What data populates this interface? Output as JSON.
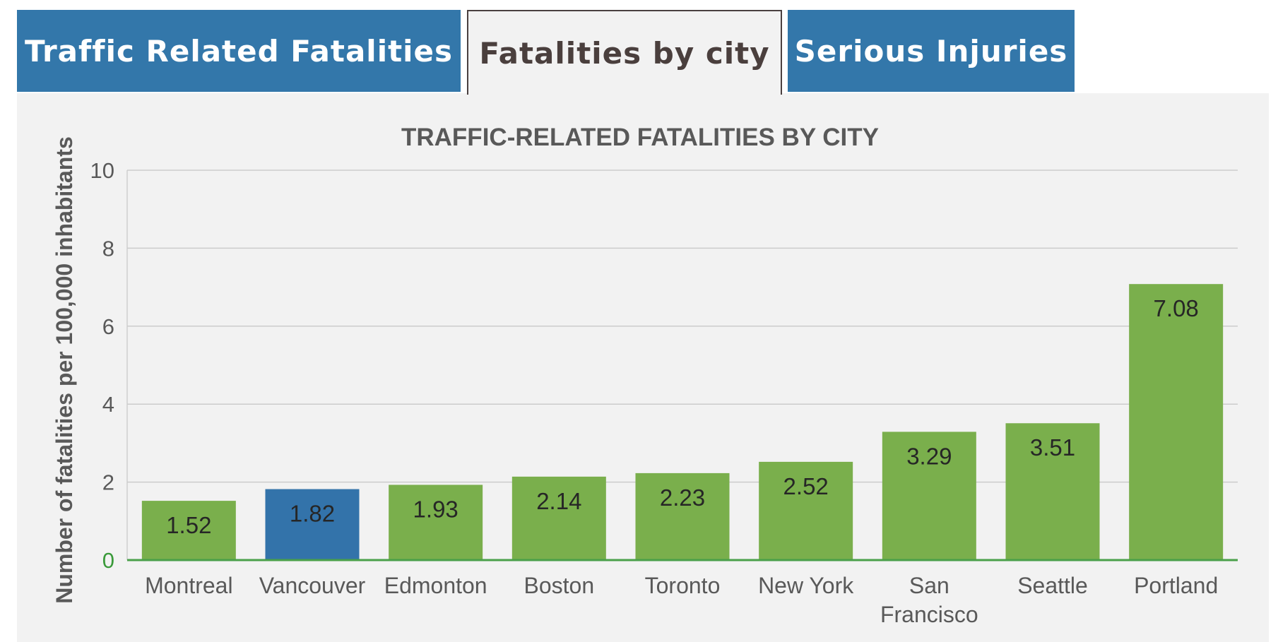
{
  "tabs": [
    {
      "label": "Traffic Related Fatalities",
      "active": false
    },
    {
      "label": "Fatalities by city",
      "active": true
    },
    {
      "label": "Serious Injuries",
      "active": false
    }
  ],
  "colors": {
    "tab_inactive": "#3377aa",
    "highlight_bar": "#3373aa",
    "default_bar": "#7aaf4c",
    "panel_bg": "#f2f2f2",
    "baseline": "#4aa04a"
  },
  "chart_data": {
    "type": "bar",
    "title": "TRAFFIC-RELATED FATALITIES BY CITY",
    "ylabel": "Number of fatalities per 100,000 inhabitants",
    "xlabel": "",
    "ylim": [
      0,
      10
    ],
    "yticks": [
      0,
      2,
      4,
      6,
      8,
      10
    ],
    "grid": true,
    "categories": [
      "Montreal",
      "Vancouver",
      "Edmonton",
      "Boston",
      "Toronto",
      "New York",
      "San Francisco",
      "Seattle",
      "Portland"
    ],
    "category_lines": [
      [
        "Montreal"
      ],
      [
        "Vancouver"
      ],
      [
        "Edmonton"
      ],
      [
        "Boston"
      ],
      [
        "Toronto"
      ],
      [
        "New York"
      ],
      [
        "San",
        "Francisco"
      ],
      [
        "Seattle"
      ],
      [
        "Portland"
      ]
    ],
    "values": [
      1.52,
      1.82,
      1.93,
      2.14,
      2.23,
      2.52,
      3.29,
      3.51,
      7.08
    ],
    "data_labels": [
      "1.52",
      "1.82",
      "1.93",
      "2.14",
      "2.23",
      "2.52",
      "3.29",
      "3.51",
      "7.08"
    ],
    "highlight_index": 1
  }
}
